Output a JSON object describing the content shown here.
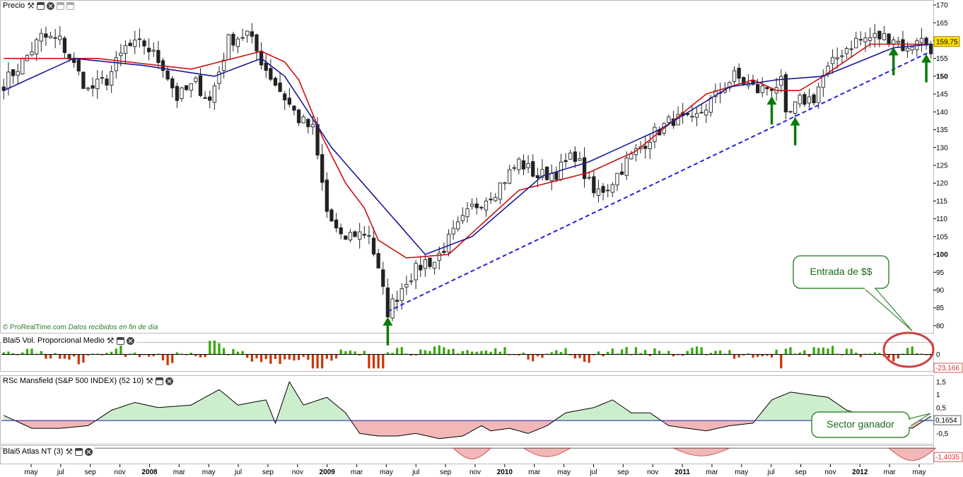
{
  "panels": {
    "price": {
      "title": "Precio"
    },
    "volume": {
      "title": "Blai5 Vol. Proporcional Medio"
    },
    "mansfield": {
      "title": "RSc Mansfield (S&P 500 INDEX) (52 10)"
    },
    "atlas": {
      "title": "Blai5 Atlas NT (3)"
    }
  },
  "credit": {
    "site": "© ProRealTime.com",
    "note": "Datos recibidos en fin de día"
  },
  "annotations": {
    "entrada": "Entrada de $$",
    "sector": "Sector ganador"
  },
  "readouts": {
    "price": "159,75",
    "volume": "-23,166",
    "mansfield": "0,1654",
    "atlas": "-1,4035"
  },
  "colors": {
    "candle": "#222222",
    "ma_red": "#cc1010",
    "ma_blue": "#1a1a99",
    "trendline": "#2222dd",
    "arrow": "#0a7a0a",
    "vol_up": "#33aa00",
    "vol_down": "#cc3300",
    "rs_pos": "#cdeecd",
    "rs_neg": "#f2b8b8",
    "callout_border": "#3a8a3a",
    "circle": "#d04040",
    "price_tag": "#ffe000"
  },
  "chart_data": {
    "type": "candlestick",
    "x_axis": {
      "labels": [
        "may",
        "jul",
        "sep",
        "nov",
        "2008",
        "mar",
        "may",
        "jul",
        "sep",
        "nov",
        "2009",
        "mar",
        "may",
        "jul",
        "sep",
        "nov",
        "2010",
        "mar",
        "may",
        "jul",
        "sep",
        "nov",
        "2011",
        "mar",
        "may",
        "jul",
        "sep",
        "nov",
        "2012",
        "mar",
        "may"
      ],
      "bold": [
        "2008",
        "2009",
        "2010",
        "2011",
        "2012"
      ]
    },
    "y_axis": {
      "ticks": [
        80,
        85,
        90,
        95,
        100,
        105,
        110,
        115,
        120,
        125,
        130,
        135,
        140,
        145,
        150,
        155,
        160,
        165,
        170
      ],
      "bold": [
        100,
        150
      ],
      "range": [
        78,
        171
      ]
    },
    "price_path": [
      [
        0,
        148
      ],
      [
        4,
        154
      ],
      [
        8,
        161
      ],
      [
        12,
        160
      ],
      [
        15,
        153
      ],
      [
        18,
        146
      ],
      [
        22,
        149
      ],
      [
        26,
        158
      ],
      [
        30,
        159
      ],
      [
        34,
        153
      ],
      [
        37,
        144
      ],
      [
        41,
        148
      ],
      [
        44,
        143
      ],
      [
        48,
        160
      ],
      [
        52,
        162
      ],
      [
        56,
        152
      ],
      [
        60,
        144
      ],
      [
        63,
        138
      ],
      [
        66,
        135
      ],
      [
        69,
        112
      ],
      [
        72,
        104
      ],
      [
        75,
        106
      ],
      [
        78,
        106
      ],
      [
        82,
        84
      ],
      [
        86,
        93
      ],
      [
        90,
        98
      ],
      [
        92,
        98
      ],
      [
        95,
        104
      ],
      [
        100,
        113
      ],
      [
        105,
        118
      ],
      [
        110,
        126
      ],
      [
        114,
        122
      ],
      [
        118,
        123
      ],
      [
        122,
        128
      ],
      [
        126,
        117
      ],
      [
        129,
        119
      ],
      [
        133,
        126
      ],
      [
        138,
        133
      ],
      [
        143,
        138
      ],
      [
        147,
        137
      ],
      [
        151,
        143
      ],
      [
        156,
        150
      ],
      [
        161,
        146
      ],
      [
        166,
        148
      ],
      [
        167,
        138
      ],
      [
        170,
        143
      ],
      [
        173,
        144
      ],
      [
        175,
        150
      ],
      [
        179,
        157
      ],
      [
        182,
        160
      ],
      [
        186,
        161
      ],
      [
        190,
        161
      ],
      [
        193,
        157
      ],
      [
        195,
        161
      ],
      [
        198,
        158
      ]
    ],
    "red_ma_path": [
      [
        0,
        155
      ],
      [
        20,
        155
      ],
      [
        40,
        152
      ],
      [
        55,
        157
      ],
      [
        60,
        154
      ],
      [
        63,
        149
      ],
      [
        68,
        133
      ],
      [
        73,
        120
      ],
      [
        77,
        113
      ],
      [
        80,
        104
      ],
      [
        86,
        99
      ],
      [
        95,
        100
      ],
      [
        110,
        118
      ],
      [
        125,
        123
      ],
      [
        135,
        129
      ],
      [
        150,
        145
      ],
      [
        160,
        149
      ],
      [
        165,
        146
      ],
      [
        170,
        146
      ],
      [
        175,
        150
      ],
      [
        185,
        159
      ],
      [
        198,
        159
      ]
    ],
    "blue_ma_path": [
      [
        0,
        146
      ],
      [
        15,
        155
      ],
      [
        30,
        153
      ],
      [
        45,
        150
      ],
      [
        55,
        155
      ],
      [
        60,
        150
      ],
      [
        70,
        130
      ],
      [
        90,
        100
      ],
      [
        100,
        105
      ],
      [
        115,
        122
      ],
      [
        125,
        126
      ],
      [
        140,
        135
      ],
      [
        155,
        147
      ],
      [
        165,
        149
      ],
      [
        175,
        150
      ],
      [
        190,
        158
      ],
      [
        198,
        159
      ]
    ],
    "trendline": {
      "from": [
        82,
        84
      ],
      "to": [
        198,
        157
      ]
    },
    "arrows_at": [
      82,
      164,
      169,
      190,
      197
    ],
    "volume": {
      "range": [
        -25,
        25
      ],
      "reference": 0
    },
    "mansfield": {
      "ticks": [
        "1,5",
        "1",
        "0,5",
        "0",
        "-0,5"
      ],
      "tick_values": [
        1.5,
        1,
        0.5,
        0,
        -0.5
      ],
      "range": [
        -0.9,
        1.7
      ],
      "reference": 0,
      "path": [
        [
          0,
          0.2
        ],
        [
          6,
          -0.3
        ],
        [
          12,
          -0.3
        ],
        [
          18,
          -0.2
        ],
        [
          23,
          0.4
        ],
        [
          28,
          0.7
        ],
        [
          33,
          0.5
        ],
        [
          40,
          0.6
        ],
        [
          46,
          1.2
        ],
        [
          50,
          0.6
        ],
        [
          56,
          0.8
        ],
        [
          58,
          -0.1
        ],
        [
          61,
          1.5
        ],
        [
          64,
          0.6
        ],
        [
          69,
          0.9
        ],
        [
          73,
          0.3
        ],
        [
          76,
          -0.5
        ],
        [
          80,
          -0.6
        ],
        [
          84,
          -0.6
        ],
        [
          88,
          -0.5
        ],
        [
          93,
          -0.7
        ],
        [
          98,
          -0.6
        ],
        [
          102,
          -0.2
        ],
        [
          104,
          -0.4
        ],
        [
          108,
          -0.3
        ],
        [
          112,
          -0.5
        ],
        [
          116,
          -0.2
        ],
        [
          120,
          0.3
        ],
        [
          126,
          0.5
        ],
        [
          130,
          0.8
        ],
        [
          134,
          0.3
        ],
        [
          138,
          0.3
        ],
        [
          142,
          -0.2
        ],
        [
          146,
          -0.3
        ],
        [
          150,
          -0.4
        ],
        [
          155,
          -0.2
        ],
        [
          160,
          -0.1
        ],
        [
          164,
          0.8
        ],
        [
          168,
          1.1
        ],
        [
          172,
          1.0
        ],
        [
          176,
          0.9
        ],
        [
          180,
          0.4
        ],
        [
          184,
          0.2
        ],
        [
          190,
          -0.1
        ],
        [
          194,
          -0.3
        ],
        [
          198,
          0.17
        ]
      ]
    },
    "atlas": {
      "range": [
        -2,
        0.2
      ],
      "negative_bumps": [
        {
          "center": 100,
          "width": 8,
          "depth": -1.4
        },
        {
          "center": 116,
          "width": 10,
          "depth": -1.1
        },
        {
          "center": 149,
          "width": 12,
          "depth": -1.0
        },
        {
          "center": 194,
          "width": 10,
          "depth": -1.6
        }
      ]
    }
  }
}
